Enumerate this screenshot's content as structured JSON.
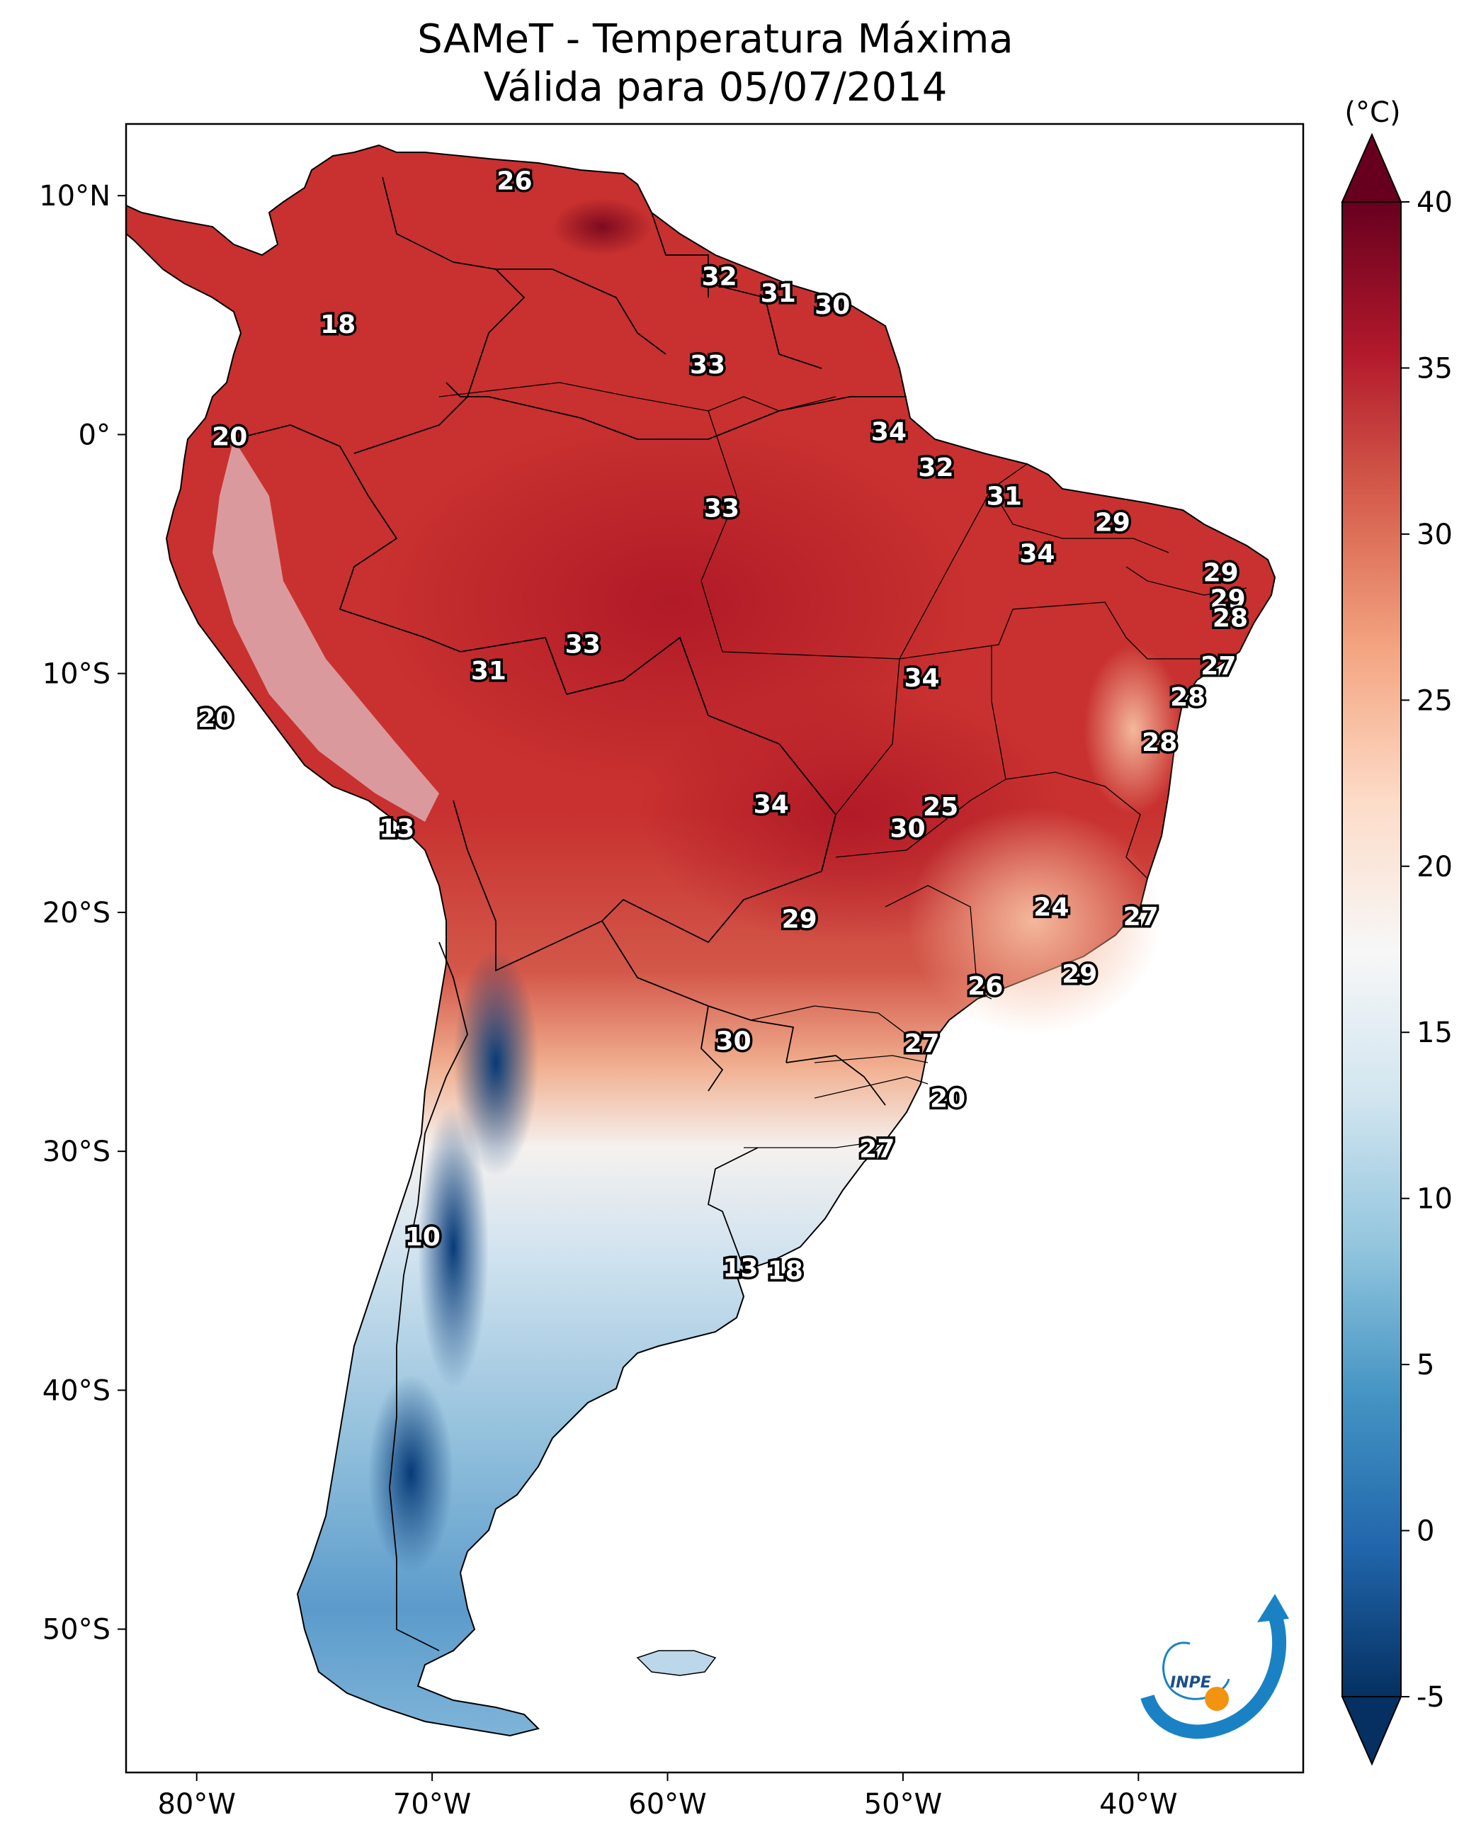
{
  "title": {
    "line1": "SAMeT - Temperatura Máxima",
    "line2": "Válida para 05/07/2014"
  },
  "map": {
    "lon_range": [
      -83,
      -33
    ],
    "lat_range": [
      -56,
      13
    ],
    "x_ticks": [
      {
        "lon": -80,
        "label": "80°W"
      },
      {
        "lon": -70,
        "label": "70°W"
      },
      {
        "lon": -60,
        "label": "60°W"
      },
      {
        "lon": -50,
        "label": "50°W"
      },
      {
        "lon": -40,
        "label": "40°W"
      }
    ],
    "y_ticks": [
      {
        "lat": 10,
        "label": "10°N"
      },
      {
        "lat": 0,
        "label": "0°"
      },
      {
        "lat": -10,
        "label": "10°S"
      },
      {
        "lat": -20,
        "label": "20°S"
      },
      {
        "lat": -30,
        "label": "30°S"
      },
      {
        "lat": -40,
        "label": "40°S"
      },
      {
        "lat": -50,
        "label": "50°S"
      }
    ],
    "isotherm_labels": [
      {
        "lon": -66.5,
        "lat": 10.6,
        "text": "26"
      },
      {
        "lon": -74,
        "lat": 4.6,
        "text": "18"
      },
      {
        "lon": -57.8,
        "lat": 6.6,
        "text": "32"
      },
      {
        "lon": -55.3,
        "lat": 5.9,
        "text": "31"
      },
      {
        "lon": -53,
        "lat": 5.4,
        "text": "30"
      },
      {
        "lon": -58.3,
        "lat": 2.9,
        "text": "33"
      },
      {
        "lon": -78.6,
        "lat": -0.1,
        "text": "20"
      },
      {
        "lon": -50.6,
        "lat": 0.1,
        "text": "34"
      },
      {
        "lon": -48.6,
        "lat": -1.4,
        "text": "32"
      },
      {
        "lon": -57.7,
        "lat": -3.1,
        "text": "33"
      },
      {
        "lon": -45.7,
        "lat": -2.6,
        "text": "31"
      },
      {
        "lon": -41.1,
        "lat": -3.7,
        "text": "29"
      },
      {
        "lon": -44.3,
        "lat": -5.0,
        "text": "34"
      },
      {
        "lon": -36.5,
        "lat": -5.8,
        "text": "29"
      },
      {
        "lon": -36.2,
        "lat": -6.9,
        "text": "29"
      },
      {
        "lon": -36.1,
        "lat": -7.7,
        "text": "28"
      },
      {
        "lon": -63.6,
        "lat": -8.8,
        "text": "33"
      },
      {
        "lon": -67.6,
        "lat": -9.9,
        "text": "31"
      },
      {
        "lon": -49.2,
        "lat": -10.2,
        "text": "34"
      },
      {
        "lon": -36.6,
        "lat": -9.7,
        "text": "27"
      },
      {
        "lon": -37.9,
        "lat": -11.0,
        "text": "28"
      },
      {
        "lon": -79.2,
        "lat": -11.9,
        "text": "20"
      },
      {
        "lon": -39.1,
        "lat": -12.9,
        "text": "28"
      },
      {
        "lon": -71.5,
        "lat": -16.5,
        "text": "13"
      },
      {
        "lon": -55.6,
        "lat": -15.5,
        "text": "34"
      },
      {
        "lon": -48.4,
        "lat": -15.6,
        "text": "25"
      },
      {
        "lon": -49.8,
        "lat": -16.5,
        "text": "30"
      },
      {
        "lon": -43.7,
        "lat": -19.8,
        "text": "24"
      },
      {
        "lon": -54.4,
        "lat": -20.3,
        "text": "29"
      },
      {
        "lon": -39.9,
        "lat": -20.2,
        "text": "27"
      },
      {
        "lon": -42.5,
        "lat": -22.6,
        "text": "29"
      },
      {
        "lon": -46.5,
        "lat": -23.1,
        "text": "26"
      },
      {
        "lon": -57.2,
        "lat": -25.4,
        "text": "30"
      },
      {
        "lon": -49.2,
        "lat": -25.5,
        "text": "27"
      },
      {
        "lon": -48.1,
        "lat": -27.8,
        "text": "20"
      },
      {
        "lon": -51.1,
        "lat": -29.9,
        "text": "27"
      },
      {
        "lon": -70.4,
        "lat": -33.6,
        "text": "10"
      },
      {
        "lon": -56.9,
        "lat": -34.9,
        "text": "13"
      },
      {
        "lon": -55.0,
        "lat": -35.0,
        "text": "18"
      }
    ]
  },
  "colorbar": {
    "unit_label": "(°C)",
    "min": -5,
    "max": 40,
    "extend": "both",
    "colormap": "RdBu_r",
    "ticks": [
      {
        "value": 40,
        "label": "40"
      },
      {
        "value": 35,
        "label": "35"
      },
      {
        "value": 30,
        "label": "30"
      },
      {
        "value": 25,
        "label": "25"
      },
      {
        "value": 20,
        "label": "20"
      },
      {
        "value": 15,
        "label": "15"
      },
      {
        "value": 10,
        "label": "10"
      },
      {
        "value": 5,
        "label": "5"
      },
      {
        "value": 0,
        "label": "0"
      },
      {
        "value": -5,
        "label": "-5"
      }
    ],
    "stops": [
      "#053061",
      "#2166ac",
      "#4393c3",
      "#92c5de",
      "#d1e5f0",
      "#f7f7f7",
      "#fddbc7",
      "#f4a582",
      "#d6604d",
      "#b2182b",
      "#67001f"
    ]
  },
  "logo": {
    "text": "INPE",
    "colors": {
      "arc": "#1a82c4",
      "dot": "#f2940f"
    }
  },
  "colors": {
    "land_hot": "#c0282d",
    "land_warm": "#e37b62",
    "land_mild": "#f7c3a7",
    "land_cool": "#dceaf3",
    "land_cold": "#6aa8d2",
    "land_very_cold": "#1c5a9a",
    "outline": "#000000"
  }
}
